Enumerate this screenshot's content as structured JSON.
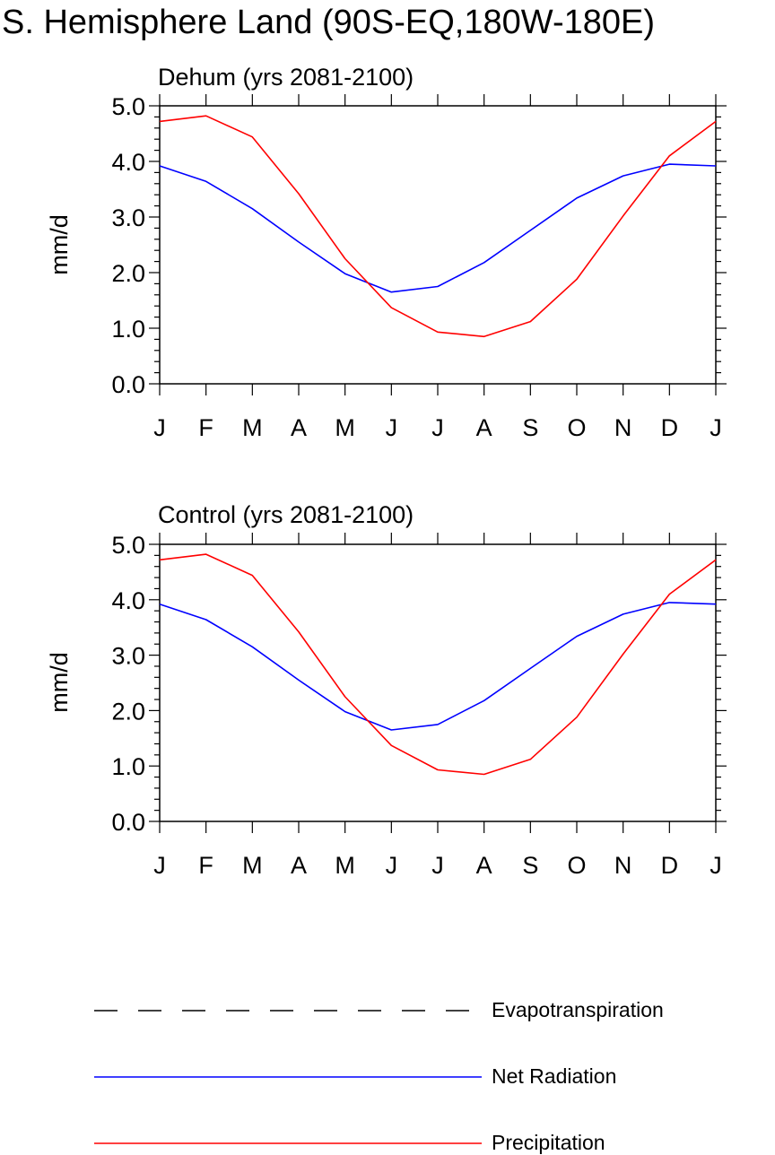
{
  "page_title": "S. Hemisphere Land (90S-EQ,180W-180E)",
  "legend": [
    {
      "label": "Evapotranspiration",
      "color": "#000000",
      "style": "dashed"
    },
    {
      "label": "Net Radiation",
      "color": "#0000ff",
      "style": "solid"
    },
    {
      "label": "Precipitation",
      "color": "#ff0000",
      "style": "solid"
    }
  ],
  "chart_data": [
    {
      "type": "line",
      "title": "Dehum (yrs 2081-2100)",
      "xlabel": "",
      "ylabel": "mm/d",
      "categories": [
        "J",
        "F",
        "M",
        "A",
        "M",
        "J",
        "J",
        "A",
        "S",
        "O",
        "N",
        "D",
        "J"
      ],
      "ylim": [
        0,
        5
      ],
      "yticks": [
        "0.0",
        "1.0",
        "2.0",
        "3.0",
        "4.0",
        "5.0"
      ],
      "series": [
        {
          "name": "Net Radiation",
          "color": "#0000ff",
          "values": [
            3.92,
            3.64,
            3.15,
            2.55,
            1.98,
            1.65,
            1.75,
            2.18,
            2.76,
            3.34,
            3.74,
            3.95,
            3.92
          ]
        },
        {
          "name": "Precipitation",
          "color": "#ff0000",
          "values": [
            4.72,
            4.82,
            4.44,
            3.42,
            2.25,
            1.37,
            0.93,
            0.85,
            1.12,
            1.88,
            3.02,
            4.1,
            4.72
          ]
        }
      ]
    },
    {
      "type": "line",
      "title": "Control (yrs 2081-2100)",
      "xlabel": "",
      "ylabel": "mm/d",
      "categories": [
        "J",
        "F",
        "M",
        "A",
        "M",
        "J",
        "J",
        "A",
        "S",
        "O",
        "N",
        "D",
        "J"
      ],
      "ylim": [
        0,
        5
      ],
      "yticks": [
        "0.0",
        "1.0",
        "2.0",
        "3.0",
        "4.0",
        "5.0"
      ],
      "series": [
        {
          "name": "Net Radiation",
          "color": "#0000ff",
          "values": [
            3.92,
            3.64,
            3.15,
            2.55,
            1.98,
            1.65,
            1.75,
            2.18,
            2.76,
            3.34,
            3.74,
            3.95,
            3.92
          ]
        },
        {
          "name": "Precipitation",
          "color": "#ff0000",
          "values": [
            4.72,
            4.82,
            4.44,
            3.42,
            2.25,
            1.37,
            0.93,
            0.85,
            1.12,
            1.88,
            3.02,
            4.1,
            4.72
          ]
        }
      ]
    }
  ]
}
